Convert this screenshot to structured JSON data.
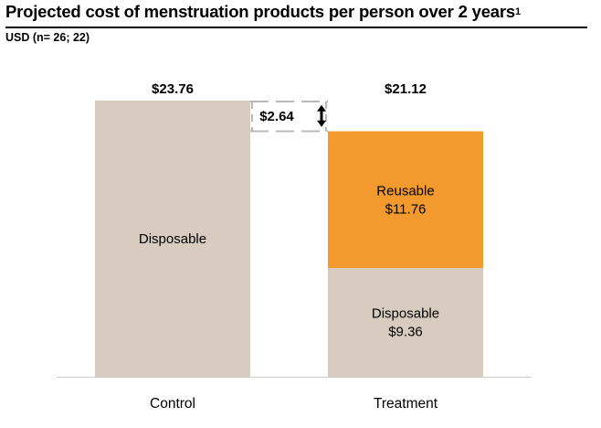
{
  "header": {
    "title": "Projected cost of menstruation products per person over 2 years",
    "title_footnote": "1",
    "subtitle": "USD (n= 26; 22)"
  },
  "chart_data": {
    "type": "bar",
    "stacked": true,
    "categories": [
      "Control",
      "Treatment"
    ],
    "series": [
      {
        "name": "Disposable",
        "values": [
          23.76,
          9.36
        ],
        "color": "#d8cbbf",
        "segment_labels": [
          "Disposable",
          "Disposable\n$9.36"
        ]
      },
      {
        "name": "Reusable",
        "values": [
          0,
          11.76
        ],
        "color": "#f29a2e",
        "segment_labels": [
          "",
          "Reusable\n$11.76"
        ]
      }
    ],
    "totals": [
      "$23.76",
      "$21.12"
    ],
    "difference": {
      "label": "$2.64",
      "value": 2.64
    },
    "ylim": [
      0,
      23.76
    ],
    "colors": {
      "axis": "#cccccc",
      "dashed": "#b8b8b8",
      "text": "#000000"
    }
  }
}
